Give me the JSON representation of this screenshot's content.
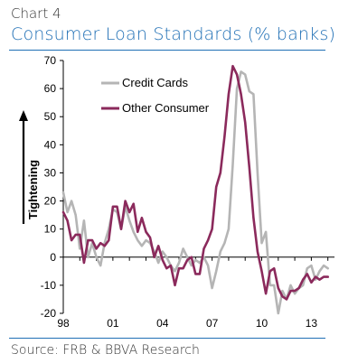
{
  "header": {
    "chart_label": "Chart 4",
    "title": "Consumer Loan Standards (% banks)"
  },
  "footer": {
    "source": "Source: FRB & BBVA Research"
  },
  "colors": {
    "title_blue": "#1f6fb5",
    "credit_cards": "#b5b5b5",
    "other_consumer": "#8b2a5c"
  },
  "chart_data": {
    "type": "line",
    "title": "Consumer Loan Standards (% banks)",
    "ylabel": "Tightening",
    "xlabel": "",
    "ylim": [
      -20,
      70
    ],
    "yticks": [
      70,
      60,
      50,
      40,
      30,
      20,
      10,
      0,
      -10,
      -20
    ],
    "xticks": [
      "98",
      "01",
      "04",
      "07",
      "10",
      "13"
    ],
    "xlim": [
      1998.0,
      2014.4
    ],
    "legend_position": "top-center",
    "series": [
      {
        "name": "Credit Cards",
        "color": "#b5b5b5",
        "points": [
          [
            1998.0,
            23
          ],
          [
            1998.25,
            16
          ],
          [
            1998.5,
            20
          ],
          [
            1998.75,
            15
          ],
          [
            1999.0,
            3
          ],
          [
            1999.25,
            13
          ],
          [
            1999.5,
            0
          ],
          [
            1999.75,
            5
          ],
          [
            2000.0,
            0
          ],
          [
            2000.25,
            -3
          ],
          [
            2000.5,
            5
          ],
          [
            2000.75,
            10
          ],
          [
            2001.0,
            17
          ],
          [
            2001.25,
            16
          ],
          [
            2001.5,
            10
          ],
          [
            2001.75,
            18
          ],
          [
            2002.0,
            13
          ],
          [
            2002.25,
            9
          ],
          [
            2002.5,
            6
          ],
          [
            2002.75,
            4
          ],
          [
            2003.0,
            6
          ],
          [
            2003.25,
            5
          ],
          [
            2003.5,
            2
          ],
          [
            2003.75,
            -2
          ],
          [
            2004.0,
            2
          ],
          [
            2004.25,
            0
          ],
          [
            2004.5,
            -3
          ],
          [
            2004.75,
            -5
          ],
          [
            2005.0,
            -2
          ],
          [
            2005.25,
            3
          ],
          [
            2005.5,
            0
          ],
          [
            2005.75,
            -3
          ],
          [
            2006.0,
            -1
          ],
          [
            2006.25,
            -2
          ],
          [
            2006.5,
            0
          ],
          [
            2006.75,
            -3
          ],
          [
            2007.0,
            -11
          ],
          [
            2007.25,
            -5
          ],
          [
            2007.5,
            2
          ],
          [
            2007.75,
            5
          ],
          [
            2008.0,
            10
          ],
          [
            2008.25,
            33
          ],
          [
            2008.5,
            60
          ],
          [
            2008.75,
            66
          ],
          [
            2009.0,
            65
          ],
          [
            2009.25,
            59
          ],
          [
            2009.5,
            58
          ],
          [
            2009.75,
            30
          ],
          [
            2010.0,
            5
          ],
          [
            2010.25,
            9
          ],
          [
            2010.5,
            -10
          ],
          [
            2010.75,
            -10
          ],
          [
            2011.0,
            -20
          ],
          [
            2011.25,
            -12
          ],
          [
            2011.5,
            -15
          ],
          [
            2011.75,
            -10
          ],
          [
            2012.0,
            -13
          ],
          [
            2012.25,
            -11
          ],
          [
            2012.5,
            -10
          ],
          [
            2012.75,
            -4
          ],
          [
            2013.0,
            -3
          ],
          [
            2013.25,
            -8
          ],
          [
            2013.5,
            -5
          ],
          [
            2013.75,
            -3
          ],
          [
            2014.0,
            -4
          ]
        ]
      },
      {
        "name": "Other Consumer",
        "color": "#8b2a5c",
        "points": [
          [
            1998.0,
            16
          ],
          [
            1998.25,
            13
          ],
          [
            1998.5,
            6
          ],
          [
            1998.75,
            8
          ],
          [
            1999.0,
            8
          ],
          [
            1999.25,
            -2
          ],
          [
            1999.5,
            6
          ],
          [
            1999.75,
            6
          ],
          [
            2000.0,
            3
          ],
          [
            2000.25,
            5
          ],
          [
            2000.5,
            4
          ],
          [
            2000.75,
            6
          ],
          [
            2001.0,
            18
          ],
          [
            2001.25,
            18
          ],
          [
            2001.5,
            10
          ],
          [
            2001.75,
            20
          ],
          [
            2002.0,
            16
          ],
          [
            2002.25,
            19
          ],
          [
            2002.5,
            9
          ],
          [
            2002.75,
            14
          ],
          [
            2003.0,
            9
          ],
          [
            2003.25,
            7
          ],
          [
            2003.5,
            0
          ],
          [
            2003.75,
            4
          ],
          [
            2004.0,
            -1
          ],
          [
            2004.25,
            -4
          ],
          [
            2004.5,
            -3
          ],
          [
            2004.75,
            -10
          ],
          [
            2005.0,
            -4
          ],
          [
            2005.25,
            -4
          ],
          [
            2005.5,
            -1
          ],
          [
            2005.75,
            0
          ],
          [
            2006.0,
            -6
          ],
          [
            2006.25,
            -6
          ],
          [
            2006.5,
            3
          ],
          [
            2006.75,
            6
          ],
          [
            2007.0,
            10
          ],
          [
            2007.25,
            25
          ],
          [
            2007.5,
            30
          ],
          [
            2007.75,
            43
          ],
          [
            2008.0,
            58
          ],
          [
            2008.25,
            68
          ],
          [
            2008.5,
            65
          ],
          [
            2008.75,
            58
          ],
          [
            2009.0,
            48
          ],
          [
            2009.25,
            32
          ],
          [
            2009.5,
            14
          ],
          [
            2009.75,
            2
          ],
          [
            2010.0,
            -5
          ],
          [
            2010.25,
            -13
          ],
          [
            2010.5,
            -5
          ],
          [
            2010.75,
            -4
          ],
          [
            2011.0,
            -11
          ],
          [
            2011.25,
            -14
          ],
          [
            2011.5,
            -15
          ],
          [
            2011.75,
            -12
          ],
          [
            2012.0,
            -12
          ],
          [
            2012.25,
            -11
          ],
          [
            2012.5,
            -8
          ],
          [
            2012.75,
            -6
          ],
          [
            2013.0,
            -9
          ],
          [
            2013.25,
            -7
          ],
          [
            2013.5,
            -8
          ],
          [
            2013.75,
            -7
          ],
          [
            2014.0,
            -7
          ]
        ]
      }
    ]
  }
}
